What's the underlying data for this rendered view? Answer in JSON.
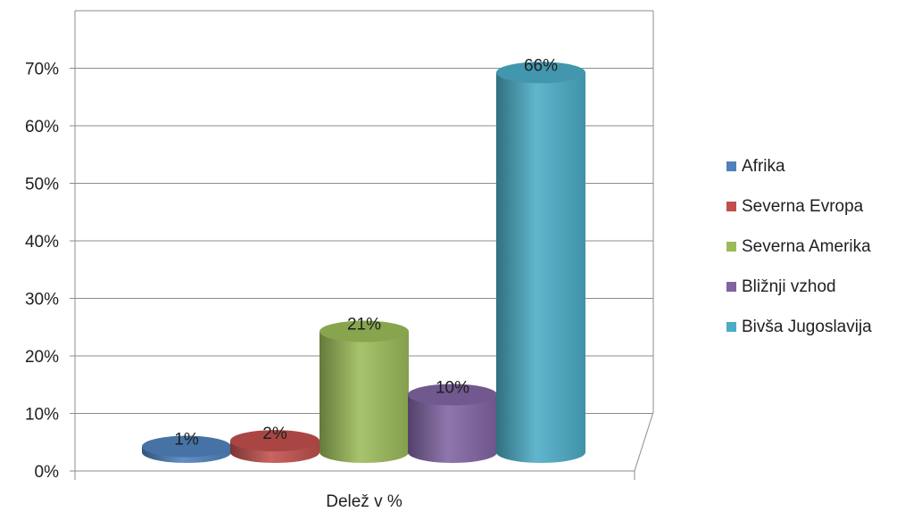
{
  "chart_data": {
    "type": "bar",
    "xlabel": "Delež v %",
    "categories": [
      "Delež v %"
    ],
    "ylim": [
      0,
      0.7
    ],
    "yticks": [
      "0%",
      "10%",
      "20%",
      "30%",
      "40%",
      "50%",
      "60%",
      "70%"
    ],
    "grid": true,
    "legend": "right",
    "series": [
      {
        "name": "Afrika",
        "values": [
          0.01
        ],
        "label": "1%",
        "color": "#4F81BD"
      },
      {
        "name": "Severna Evropa",
        "values": [
          0.02
        ],
        "label": "2%",
        "color": "#C0504D"
      },
      {
        "name": "Severna Amerika",
        "values": [
          0.21
        ],
        "label": "21%",
        "color": "#9BBB59"
      },
      {
        "name": "Bližnji vzhod",
        "values": [
          0.1
        ],
        "label": "10%",
        "color": "#8064A2"
      },
      {
        "name": "Bivša Jugoslavija",
        "values": [
          0.66
        ],
        "label": "66%",
        "color": "#4BACC6"
      }
    ]
  }
}
